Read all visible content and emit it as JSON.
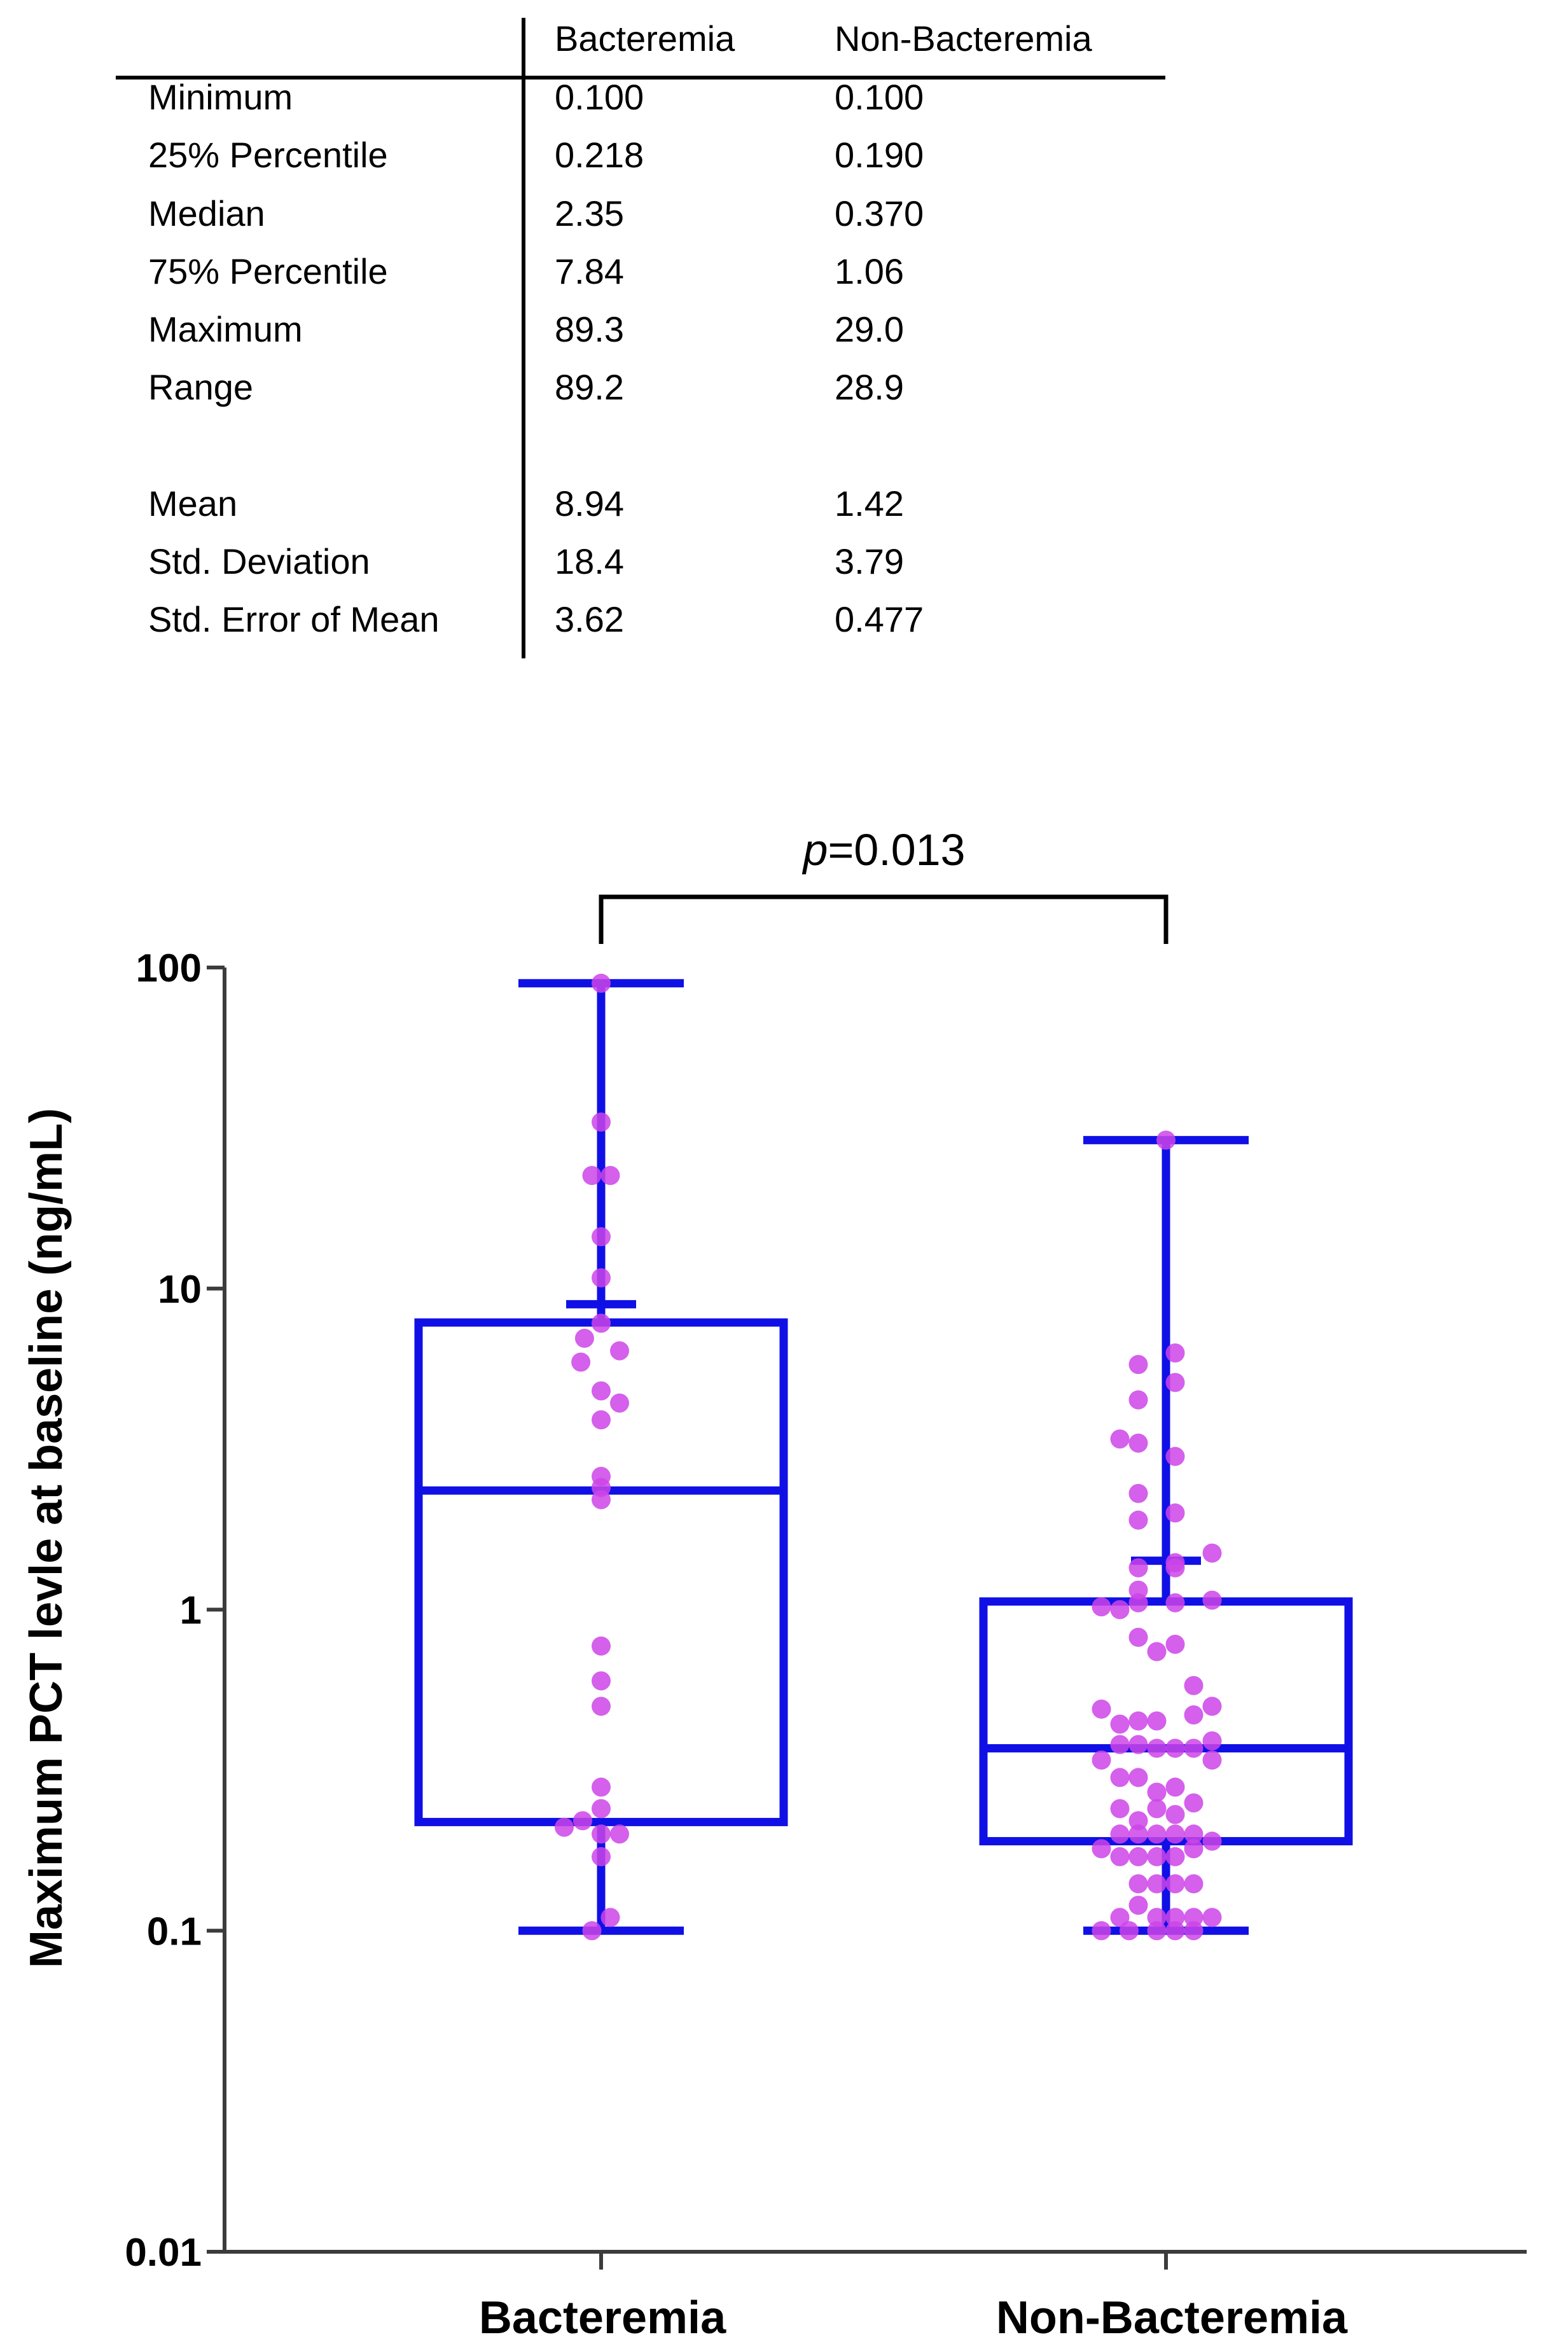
{
  "stats_table": {
    "headers": [
      "Bacteremia",
      "Non-Bacteremia"
    ],
    "rows": [
      {
        "label": "Minimum",
        "values": [
          "0.100",
          "0.100"
        ]
      },
      {
        "label": "25% Percentile",
        "values": [
          "0.218",
          "0.190"
        ]
      },
      {
        "label": "Median",
        "values": [
          "2.35",
          "0.370"
        ]
      },
      {
        "label": "75% Percentile",
        "values": [
          "7.84",
          "1.06"
        ]
      },
      {
        "label": "Maximum",
        "values": [
          "89.3",
          "29.0"
        ]
      },
      {
        "label": "Range",
        "values": [
          "89.2",
          "28.9"
        ]
      },
      {
        "label": "Mean",
        "values": [
          "8.94",
          "1.42"
        ]
      },
      {
        "label": "Std. Deviation",
        "values": [
          "18.4",
          "3.79"
        ]
      },
      {
        "label": "Std. Error of Mean",
        "values": [
          "3.62",
          "0.477"
        ]
      }
    ]
  },
  "annotation": {
    "p_symbol": "p",
    "p_value": "=0.013"
  },
  "chart_data": {
    "type": "box-scatter",
    "ylabel": "Maximum PCT levle at baseline (ng/mL)",
    "yscale": "log",
    "ylim": [
      0.01,
      100
    ],
    "yticks": [
      "0.01",
      "0.1",
      "1",
      "10",
      "100"
    ],
    "categories": [
      "Bacteremia",
      "Non-Bacteremia"
    ],
    "box_color": "#1010e6",
    "point_color": "#cc44e8",
    "boxes": [
      {
        "name": "Bacteremia",
        "min": 0.1,
        "q1": 0.218,
        "median": 2.35,
        "q3": 7.84,
        "max": 89.3,
        "mean": 8.94
      },
      {
        "name": "Non-Bacteremia",
        "min": 0.1,
        "q1": 0.19,
        "median": 0.37,
        "q3": 1.06,
        "max": 29.0,
        "mean": 1.42
      }
    ],
    "points": [
      [
        {
          "o": 0,
          "y": 89.3
        },
        {
          "o": 0,
          "y": 33
        },
        {
          "o": -0.5,
          "y": 22.5
        },
        {
          "o": 0.5,
          "y": 22.5
        },
        {
          "o": 0,
          "y": 14.5
        },
        {
          "o": 0,
          "y": 10.8
        },
        {
          "o": -0.9,
          "y": 7.0
        },
        {
          "o": 0,
          "y": 7.8
        },
        {
          "o": -1.1,
          "y": 5.9
        },
        {
          "o": 1.0,
          "y": 6.4
        },
        {
          "o": 0,
          "y": 4.8
        },
        {
          "o": 1.0,
          "y": 4.4
        },
        {
          "o": 0,
          "y": 3.9
        },
        {
          "o": 0,
          "y": 2.6
        },
        {
          "o": 0,
          "y": 2.4
        },
        {
          "o": 0,
          "y": 2.2
        },
        {
          "o": 0,
          "y": 0.77
        },
        {
          "o": 0,
          "y": 0.6
        },
        {
          "o": 0,
          "y": 0.5
        },
        {
          "o": 0,
          "y": 0.28
        },
        {
          "o": 0,
          "y": 0.24
        },
        {
          "o": -2.0,
          "y": 0.21
        },
        {
          "o": -1.0,
          "y": 0.22
        },
        {
          "o": 0,
          "y": 0.2
        },
        {
          "o": 1.0,
          "y": 0.2
        },
        {
          "o": 0,
          "y": 0.17
        },
        {
          "o": 0.5,
          "y": 0.11
        },
        {
          "o": -0.5,
          "y": 0.1
        }
      ],
      [
        {
          "o": 0,
          "y": 29.0
        },
        {
          "o": -1.5,
          "y": 5.8
        },
        {
          "o": 0.5,
          "y": 6.3
        },
        {
          "o": 0.5,
          "y": 5.1
        },
        {
          "o": -1.5,
          "y": 4.5
        },
        {
          "o": -2.5,
          "y": 3.4
        },
        {
          "o": -1.5,
          "y": 3.3
        },
        {
          "o": 0.5,
          "y": 3.0
        },
        {
          "o": -1.5,
          "y": 2.3
        },
        {
          "o": 0.5,
          "y": 2.0
        },
        {
          "o": -1.5,
          "y": 1.9
        },
        {
          "o": 0.5,
          "y": 1.4
        },
        {
          "o": 2.5,
          "y": 1.5
        },
        {
          "o": -1.5,
          "y": 1.35
        },
        {
          "o": 0.5,
          "y": 1.35
        },
        {
          "o": -1.5,
          "y": 1.15
        },
        {
          "o": -3.5,
          "y": 1.02
        },
        {
          "o": -2.5,
          "y": 1.0
        },
        {
          "o": -1.5,
          "y": 1.05
        },
        {
          "o": 0.5,
          "y": 1.05
        },
        {
          "o": 2.5,
          "y": 1.07
        },
        {
          "o": -1.5,
          "y": 0.82
        },
        {
          "o": -0.5,
          "y": 0.74
        },
        {
          "o": 0.5,
          "y": 0.78
        },
        {
          "o": -3.5,
          "y": 0.49
        },
        {
          "o": -2.5,
          "y": 0.44
        },
        {
          "o": -1.5,
          "y": 0.45
        },
        {
          "o": -0.5,
          "y": 0.45
        },
        {
          "o": 1.5,
          "y": 0.58
        },
        {
          "o": 1.5,
          "y": 0.47
        },
        {
          "o": 2.5,
          "y": 0.5
        },
        {
          "o": -3.5,
          "y": 0.34
        },
        {
          "o": -2.5,
          "y": 0.38
        },
        {
          "o": -1.5,
          "y": 0.38
        },
        {
          "o": -0.5,
          "y": 0.37
        },
        {
          "o": 0.5,
          "y": 0.37
        },
        {
          "o": 1.5,
          "y": 0.37
        },
        {
          "o": 2.5,
          "y": 0.39
        },
        {
          "o": 2.5,
          "y": 0.34
        },
        {
          "o": -2.5,
          "y": 0.3
        },
        {
          "o": -1.5,
          "y": 0.3
        },
        {
          "o": -0.5,
          "y": 0.27
        },
        {
          "o": 0.5,
          "y": 0.28
        },
        {
          "o": 1.5,
          "y": 0.25
        },
        {
          "o": -2.5,
          "y": 0.24
        },
        {
          "o": -1.5,
          "y": 0.22
        },
        {
          "o": -0.5,
          "y": 0.24
        },
        {
          "o": 0.5,
          "y": 0.23
        },
        {
          "o": -3.5,
          "y": 0.18
        },
        {
          "o": -2.5,
          "y": 0.2
        },
        {
          "o": -1.5,
          "y": 0.2
        },
        {
          "o": -0.5,
          "y": 0.2
        },
        {
          "o": 0.5,
          "y": 0.2
        },
        {
          "o": 1.5,
          "y": 0.2
        },
        {
          "o": 2.5,
          "y": 0.19
        },
        {
          "o": -2.5,
          "y": 0.17
        },
        {
          "o": -1.5,
          "y": 0.17
        },
        {
          "o": -0.5,
          "y": 0.17
        },
        {
          "o": 0.5,
          "y": 0.17
        },
        {
          "o": 1.5,
          "y": 0.18
        },
        {
          "o": -1.5,
          "y": 0.14
        },
        {
          "o": -0.5,
          "y": 0.14
        },
        {
          "o": 0.5,
          "y": 0.14
        },
        {
          "o": 1.5,
          "y": 0.14
        },
        {
          "o": -2.5,
          "y": 0.11
        },
        {
          "o": -1.5,
          "y": 0.12
        },
        {
          "o": -0.5,
          "y": 0.11
        },
        {
          "o": 0.5,
          "y": 0.11
        },
        {
          "o": 1.5,
          "y": 0.11
        },
        {
          "o": 2.5,
          "y": 0.11
        },
        {
          "o": -3.5,
          "y": 0.1
        },
        {
          "o": -2.0,
          "y": 0.1
        },
        {
          "o": -0.5,
          "y": 0.1
        },
        {
          "o": 0.5,
          "y": 0.1
        },
        {
          "o": 1.5,
          "y": 0.1
        }
      ]
    ]
  }
}
